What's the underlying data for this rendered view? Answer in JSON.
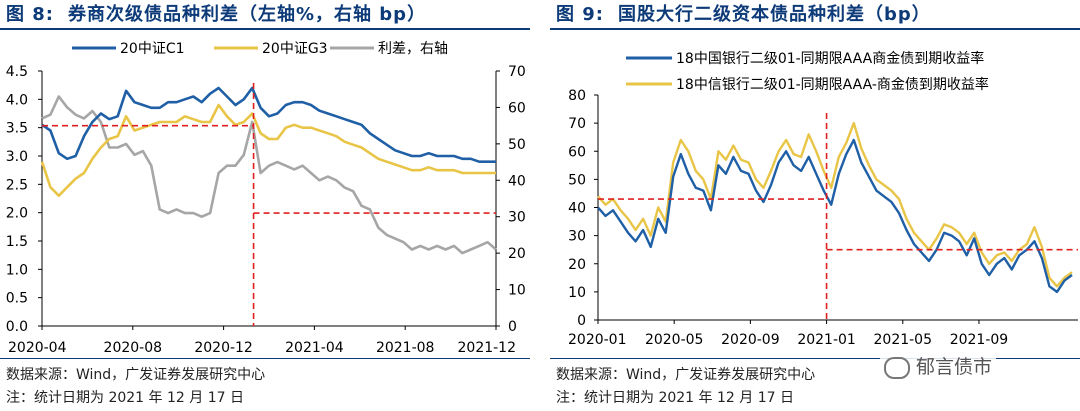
{
  "colors": {
    "title": "#0d3a78",
    "blue": "#1f5fa6",
    "gold": "#e8c547",
    "gray": "#a6a6a6",
    "red": "#e02020"
  },
  "left": {
    "title_num": "图 8:",
    "title_text": "券商次级债品种利差（左轴%，右轴 bp）",
    "source": "数据来源：Wind，广发证券发展研究中心",
    "date_note": "注：统计日期为 2021 年 12 月 17 日"
  },
  "right": {
    "title_num": "图 9:",
    "title_text": "国股大行二级资本债品种利差（bp）",
    "source": "数据来源：Wind，广发证券发展研究中心",
    "date_note": "注：统计日期为 2021 年 12 月 17 日"
  },
  "watermark": {
    "icon": "wechat-icon",
    "text": "郁言债市"
  },
  "chart_data": [
    {
      "type": "line",
      "title": "券商次级债品种利差（左轴%，右轴 bp）",
      "x_labels": [
        "2020-04",
        "2020-08",
        "2020-12",
        "2021-04",
        "2021-08",
        "2021-12"
      ],
      "ylim_left": [
        0,
        4.5
      ],
      "yticks_left": [
        "0.0",
        "0.5",
        "1.0",
        "1.5",
        "2.0",
        "2.5",
        "3.0",
        "3.5",
        "4.0",
        "4.5"
      ],
      "ylim_right": [
        0,
        70
      ],
      "yticks_right": [
        "0",
        "10",
        "20",
        "30",
        "40",
        "50",
        "60",
        "70"
      ],
      "series": [
        {
          "name": "20中证C1",
          "axis": "left",
          "color": "#1f5fa6",
          "values": [
            3.55,
            3.45,
            3.05,
            2.95,
            3.0,
            3.35,
            3.6,
            3.75,
            3.65,
            3.7,
            4.15,
            3.95,
            3.9,
            3.85,
            3.85,
            3.95,
            3.95,
            4.0,
            4.05,
            3.95,
            4.1,
            4.2,
            4.05,
            3.9,
            4.0,
            4.2,
            3.85,
            3.7,
            3.75,
            3.9,
            3.95,
            3.95,
            3.9,
            3.8,
            3.75,
            3.7,
            3.65,
            3.6,
            3.55,
            3.4,
            3.3,
            3.2,
            3.1,
            3.05,
            3.0,
            3.0,
            3.05,
            3.0,
            3.0,
            3.0,
            2.95,
            2.95,
            2.9,
            2.9,
            2.9
          ]
        },
        {
          "name": "20中证G3",
          "axis": "left",
          "color": "#e8c547",
          "values": [
            2.9,
            2.45,
            2.3,
            2.45,
            2.6,
            2.7,
            2.95,
            3.15,
            3.3,
            3.35,
            3.7,
            3.45,
            3.5,
            3.55,
            3.6,
            3.6,
            3.6,
            3.7,
            3.65,
            3.6,
            3.6,
            3.9,
            3.7,
            3.55,
            3.6,
            3.75,
            3.4,
            3.3,
            3.3,
            3.5,
            3.55,
            3.5,
            3.5,
            3.45,
            3.4,
            3.35,
            3.25,
            3.2,
            3.15,
            3.05,
            2.95,
            2.9,
            2.85,
            2.8,
            2.75,
            2.75,
            2.8,
            2.75,
            2.75,
            2.75,
            2.7,
            2.7,
            2.7,
            2.7,
            2.7
          ]
        },
        {
          "name": "利差，右轴",
          "axis": "right",
          "color": "#a6a6a6",
          "values": [
            57,
            58,
            63,
            60,
            58,
            57,
            59,
            56,
            49,
            49,
            50,
            47,
            48,
            44,
            32,
            31,
            32,
            31,
            31,
            30,
            31,
            42,
            44,
            44,
            47,
            56,
            42,
            44,
            45,
            44,
            43,
            44,
            42,
            40,
            41,
            40,
            38,
            37,
            33,
            32,
            27,
            25,
            24,
            23,
            21,
            22,
            21,
            22,
            21,
            22,
            20,
            21,
            22,
            23,
            21
          ]
        }
      ],
      "reference_lines": [
        {
          "from": "2020-04",
          "to": "2020-12",
          "value": 55,
          "axis": "right"
        },
        {
          "from": "2021-01",
          "to": "2021-12",
          "value": 31,
          "axis": "right"
        },
        {
          "vertical_at": "2021-01"
        }
      ]
    },
    {
      "type": "line",
      "title": "国股大行二级资本债品种利差（bp）",
      "x_labels": [
        "2020-01",
        "2020-05",
        "2020-09",
        "2021-01",
        "2021-05",
        "2021-09"
      ],
      "ylim": [
        0,
        80
      ],
      "yticks": [
        "0",
        "10",
        "20",
        "30",
        "40",
        "50",
        "60",
        "70",
        "80"
      ],
      "series": [
        {
          "name": "18中国银行二级01-同期限AAA商金债到期收益率",
          "color": "#1f5fa6",
          "values": [
            40,
            37,
            39,
            35,
            31,
            28,
            32,
            26,
            36,
            31,
            51,
            59,
            52,
            47,
            46,
            39,
            55,
            52,
            58,
            53,
            52,
            46,
            42,
            48,
            56,
            60,
            55,
            53,
            58,
            52,
            46,
            41,
            52,
            59,
            64,
            56,
            51,
            46,
            44,
            42,
            38,
            32,
            27,
            24,
            21,
            25,
            31,
            30,
            28,
            23,
            29,
            20,
            16,
            20,
            22,
            18,
            23,
            25,
            28,
            22,
            12,
            10,
            14,
            16
          ]
        },
        {
          "name": "18中信银行二级01-同期限AAA-商金债到期收益率",
          "color": "#e8c547",
          "values": [
            44,
            41,
            43,
            39,
            36,
            32,
            36,
            30,
            40,
            35,
            56,
            64,
            60,
            53,
            50,
            43,
            60,
            57,
            62,
            57,
            56,
            50,
            47,
            53,
            60,
            64,
            59,
            58,
            66,
            60,
            53,
            47,
            58,
            63,
            70,
            61,
            55,
            50,
            48,
            46,
            43,
            36,
            31,
            28,
            25,
            29,
            34,
            33,
            31,
            27,
            31,
            24,
            20,
            23,
            24,
            21,
            25,
            27,
            33,
            26,
            15,
            12,
            15,
            17
          ]
        }
      ],
      "reference_lines": [
        {
          "from": "2020-01",
          "to": "2020-12",
          "value": 43
        },
        {
          "from": "2021-01",
          "to": "2021-12",
          "value": 25
        },
        {
          "vertical_at": "2021-01"
        }
      ]
    }
  ]
}
